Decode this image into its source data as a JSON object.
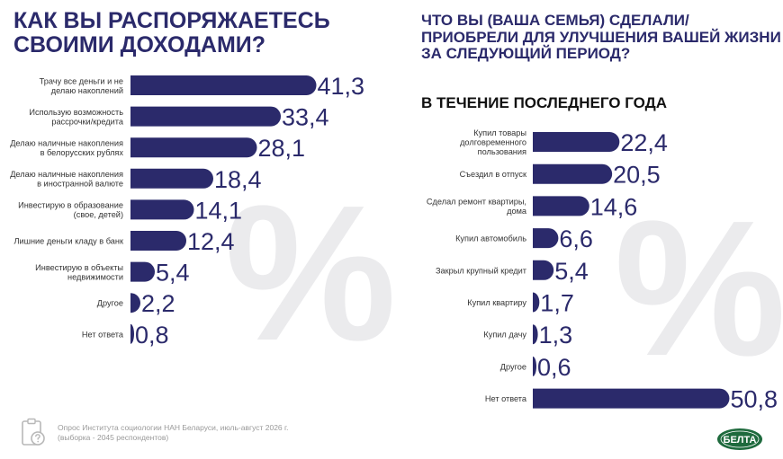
{
  "left_title": "КАК ВЫ РАСПОРЯЖАЕТЕСЬ СВОИМИ ДОХОДАМИ?",
  "right_title": "ЧТО ВЫ (ВАША СЕМЬЯ) СДЕЛАЛИ/ПРИОБРЕЛИ ДЛЯ УЛУЧШЕНИЯ ВАШЕЙ ЖИЗНИ ЗА СЛЕДУЮЩИЙ ПЕРИОД?",
  "right_subtitle": "В ТЕЧЕНИЕ ПОСЛЕДНЕГО ГОДА",
  "decor_symbol": "%",
  "footer": {
    "line1": "Опрос Института социологии НАН Беларуси, июль-август 2026 г.",
    "line2": "(выборка - 2045 респондентов)"
  },
  "logo_text": "БЕЛТА",
  "colors": {
    "bar": "#2b2a6b",
    "value_text": "#2b2a6b",
    "label_text": "#333333",
    "watermark": "#ebebed"
  },
  "icons": {
    "footer": "clipboard-question-icon",
    "watermark": "percent-icon",
    "logo": "belta-logo"
  },
  "chart_data": [
    {
      "type": "bar",
      "orientation": "horizontal",
      "title": "КАК ВЫ РАСПОРЯЖАЕТЕСЬ СВОИМИ ДОХОДАМИ?",
      "categories": [
        "Трачу все деньги и не делаю накоплений",
        "Использую возможность рассрочки/кредита",
        "Делаю наличные накопления в белорусских рублях",
        "Делаю наличные накопления в иностранной валюте",
        "Инвестирую в образование (свое, детей)",
        "Лишние деньги кладу в банк",
        "Инвестирую в объекты недвижимости",
        "Другое",
        "Нет ответа"
      ],
      "values": [
        41.3,
        33.4,
        28.1,
        18.4,
        14.1,
        12.4,
        5.4,
        2.2,
        0.8
      ],
      "value_labels": [
        "41,3",
        "33,4",
        "28,1",
        "18,4",
        "14,1",
        "12,4",
        "5,4",
        "2,2",
        "0,8"
      ]
    },
    {
      "type": "bar",
      "orientation": "horizontal",
      "title": "ЧТО ВЫ (ВАША СЕМЬЯ) СДЕЛАЛИ/ПРИОБРЕЛИ ДЛЯ УЛУЧШЕНИЯ ВАШЕЙ ЖИЗНИ ЗА СЛЕДУЮЩИЙ ПЕРИОД?",
      "subtitle": "В ТЕЧЕНИЕ ПОСЛЕДНЕГО ГОДА",
      "categories": [
        "Купил товары долговременного пользования",
        "Съездил в отпуск",
        "Сделал ремонт квартиры, дома",
        "Купил автомобиль",
        "Закрыл крупный кредит",
        "Купил квартиру",
        "Купил дачу",
        "Другое",
        "Нет ответа"
      ],
      "values": [
        22.4,
        20.5,
        14.6,
        6.6,
        5.4,
        1.7,
        1.3,
        0.6,
        50.8
      ],
      "value_labels": [
        "22,4",
        "20,5",
        "14,6",
        "6,6",
        "5,4",
        "1,7",
        "1,3",
        "0,6",
        "50,8"
      ]
    }
  ]
}
